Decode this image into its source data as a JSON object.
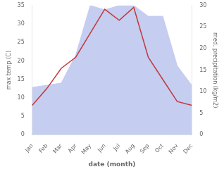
{
  "chart_data": {
    "type": "line",
    "xlabel": "date (month)",
    "ylabel": "max temp (C)",
    "y2label": "med. precipitation (kg/m2)",
    "categories": [
      "Jan",
      "Feb",
      "Mar",
      "Apr",
      "May",
      "Jun",
      "Jul",
      "Aug",
      "Sep",
      "Oct",
      "Nov",
      "Dec"
    ],
    "series": [
      {
        "type": "area",
        "color": "#c5cdf0",
        "axis": "y2",
        "values": [
          11,
          11.5,
          12,
          18.5,
          30,
          29,
          30,
          30,
          27.5,
          27.5,
          16,
          11.5
        ]
      },
      {
        "type": "line",
        "color": "#c0393b",
        "values": [
          8,
          12.5,
          18,
          21,
          27.5,
          34,
          31,
          34.5,
          21,
          15,
          9,
          8
        ]
      }
    ],
    "ylim": [
      0,
      35
    ],
    "yticks": [
      0,
      5,
      10,
      15,
      20,
      25,
      30,
      35
    ],
    "y2lim": [
      0,
      30
    ],
    "y2ticks": [
      0,
      5,
      10,
      15,
      20,
      25,
      30
    ],
    "grid": false
  }
}
